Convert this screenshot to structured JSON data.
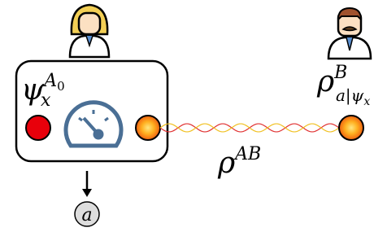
{
  "labels": {
    "alice_state": {
      "base": "ψ",
      "sub": "x",
      "sup": "A",
      "supsub": "0"
    },
    "bob_state": {
      "base": "ρ",
      "sup": "B",
      "sub": "a|ψ",
      "subsub": "x"
    },
    "shared_state": {
      "base": "ρ",
      "sup": "AB"
    },
    "outcome": "a"
  }
}
